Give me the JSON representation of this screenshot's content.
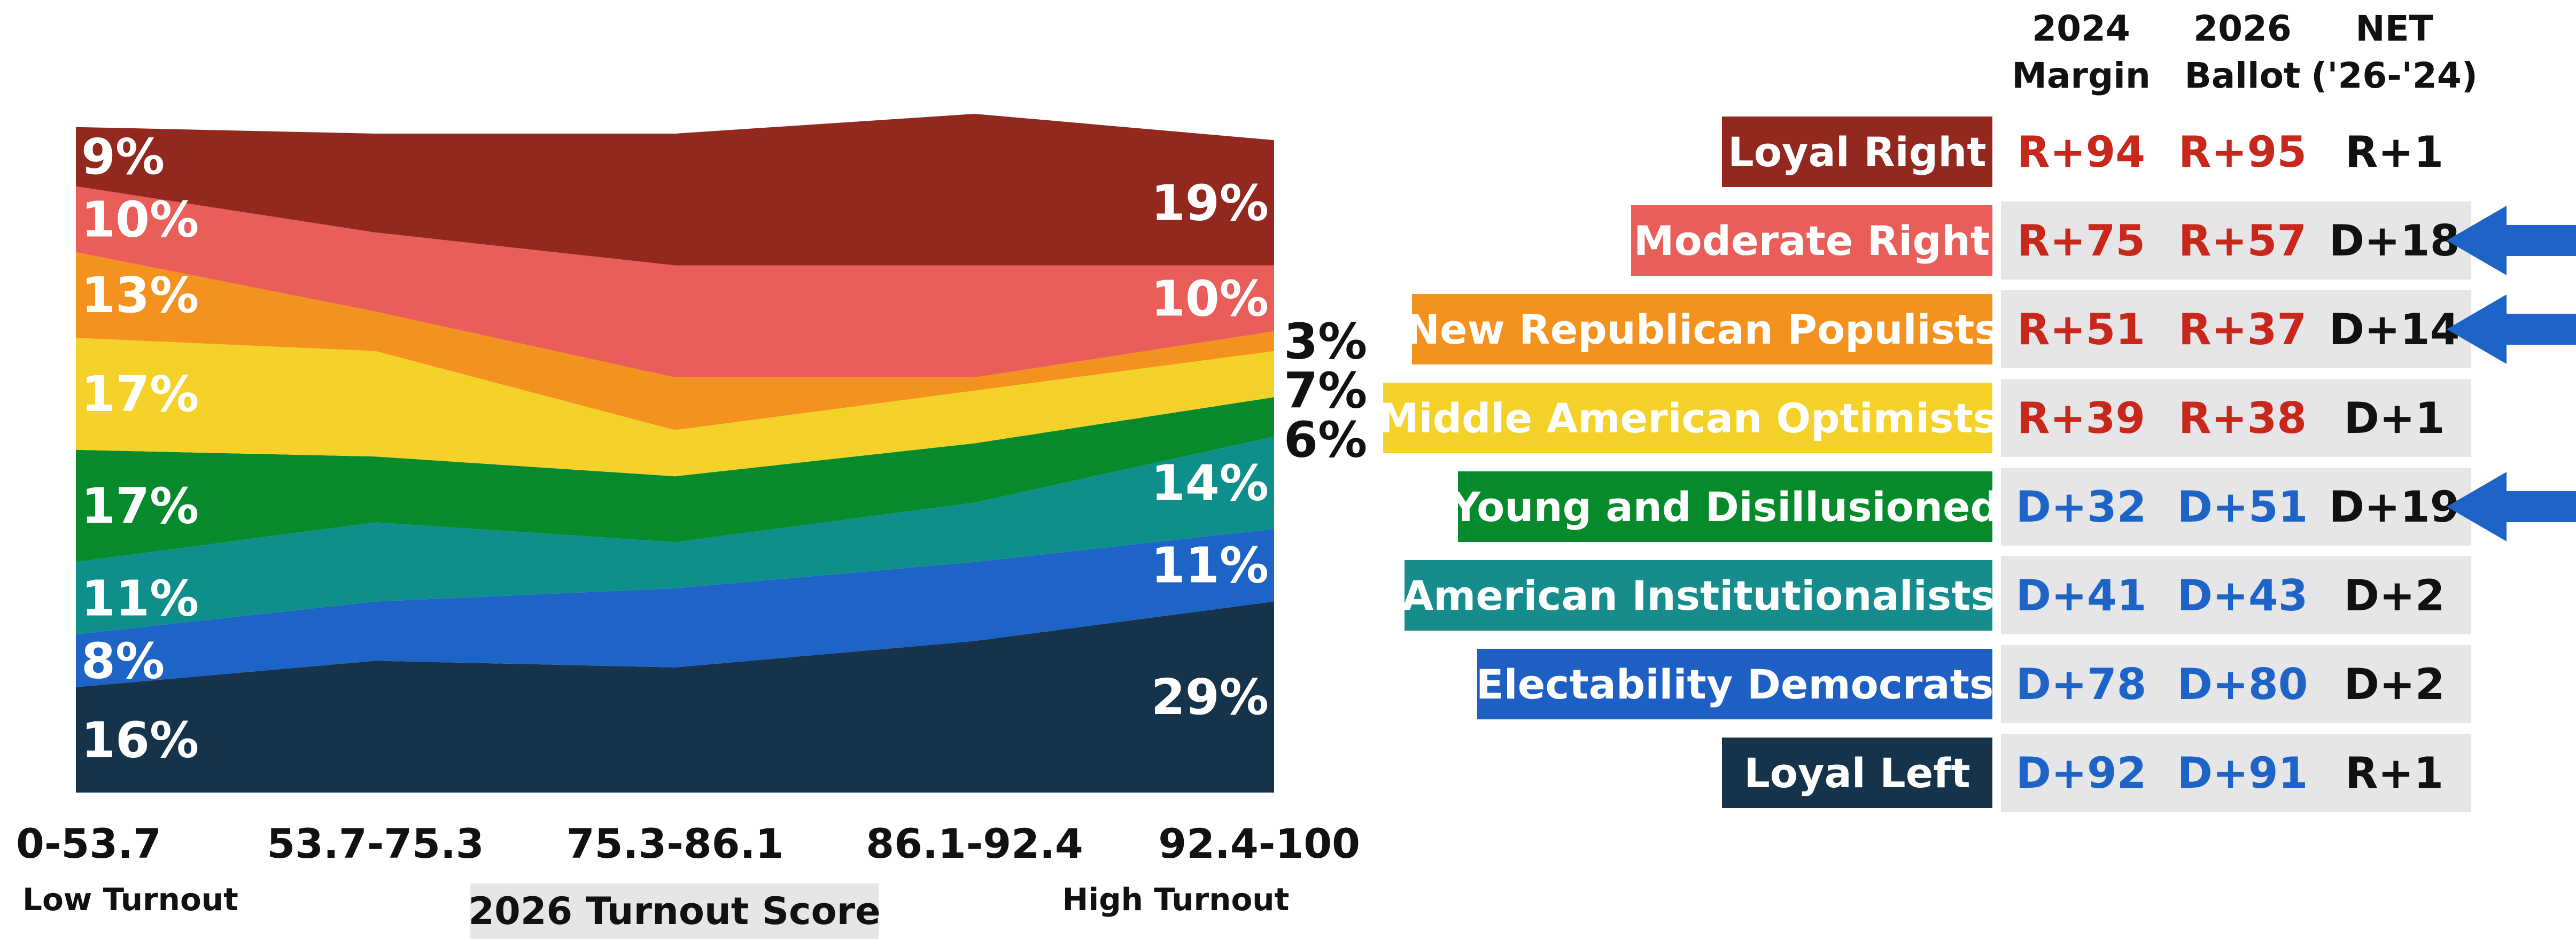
{
  "chart_data": {
    "type": "area",
    "stacked": true,
    "normalized": true,
    "categories": [
      "0-53.7",
      "53.7-75.3",
      "75.3-86.1",
      "86.1-92.4",
      "92.4-100"
    ],
    "x_extremes": {
      "left": "Low Turnout",
      "right": "High Turnout"
    },
    "xlabel": "2026 Turnout Score",
    "series": [
      {
        "name": "Loyal Left",
        "color": "#15344c",
        "values": [
          16,
          20,
          19,
          23,
          29
        ],
        "labels": [
          "16%",
          "",
          "",
          "",
          "29%"
        ]
      },
      {
        "name": "Electability Democrats",
        "color": "#1e63c6",
        "values": [
          8,
          9,
          12,
          12,
          11
        ],
        "labels": [
          "8%",
          "",
          "",
          "",
          "11%"
        ]
      },
      {
        "name": "American Institutionalists",
        "color": "#0f8f8c",
        "values": [
          11,
          12,
          7,
          9,
          14
        ],
        "labels": [
          "11%",
          "",
          "",
          "",
          "14%"
        ]
      },
      {
        "name": "Young and Disillusioned",
        "color": "#078a2c",
        "values": [
          17,
          10,
          10,
          9,
          6
        ],
        "labels": [
          "17%",
          "",
          "",
          "",
          "6%"
        ]
      },
      {
        "name": "Middle American Optimists",
        "color": "#f5d22a",
        "values": [
          17,
          16,
          7,
          8,
          7
        ],
        "labels": [
          "17%",
          "",
          "",
          "",
          "7%"
        ]
      },
      {
        "name": "New Republican Populists",
        "color": "#f4921f",
        "values": [
          13,
          6,
          8,
          2,
          3
        ],
        "labels": [
          "13%",
          "",
          "",
          "",
          "3%"
        ]
      },
      {
        "name": "Moderate Right",
        "color": "#ea5e5a",
        "values": [
          10,
          12,
          17,
          17,
          10
        ],
        "labels": [
          "10%",
          "",
          "",
          "",
          "10%"
        ]
      },
      {
        "name": "Loyal Right",
        "color": "#93281f",
        "values": [
          9,
          15,
          20,
          23,
          19
        ],
        "labels": [
          "9%",
          "",
          "",
          "",
          "19%"
        ]
      }
    ],
    "ylim": [
      0,
      100
    ]
  },
  "table": {
    "headers": [
      "2024\nMargin",
      "2026\nBallot",
      "NET\n('26-'24)"
    ],
    "rows": [
      {
        "name": "Loyal Right",
        "color": "#93281f",
        "margin_2024": "R+94",
        "ballot_2026": "R+95",
        "net": "R+1",
        "arrow": false
      },
      {
        "name": "Moderate Right",
        "color": "#ea5e5a",
        "margin_2024": "R+75",
        "ballot_2026": "R+57",
        "net": "D+18",
        "arrow": true
      },
      {
        "name": "New Republican Populists",
        "color": "#f4921f",
        "margin_2024": "R+51",
        "ballot_2026": "R+37",
        "net": "D+14",
        "arrow": true
      },
      {
        "name": "Middle American Optimists",
        "color": "#f5d22a",
        "margin_2024": "R+39",
        "ballot_2026": "R+38",
        "net": "D+1",
        "arrow": false
      },
      {
        "name": "Young and Disillusioned",
        "color": "#078a2c",
        "margin_2024": "D+32",
        "ballot_2026": "D+51",
        "net": "D+19",
        "arrow": true
      },
      {
        "name": "American Institutionalists",
        "color": "#178c8c",
        "margin_2024": "D+41",
        "ballot_2026": "D+43",
        "net": "D+2",
        "arrow": false
      },
      {
        "name": "Electability Democrats",
        "color": "#1e5fc4",
        "margin_2024": "D+78",
        "ballot_2026": "D+80",
        "net": "D+2",
        "arrow": false
      },
      {
        "name": "Loyal Left",
        "color": "#15344c",
        "margin_2024": "D+92",
        "ballot_2026": "D+91",
        "net": "R+1",
        "arrow": false
      }
    ]
  },
  "colors": {
    "republican": "#c8281c",
    "democrat": "#1e63c6",
    "net_text": "#111111",
    "arrow": "#1e63c6",
    "row_bg": "#e6e6e8"
  },
  "icons": {
    "arrow": "left-arrow-icon"
  }
}
